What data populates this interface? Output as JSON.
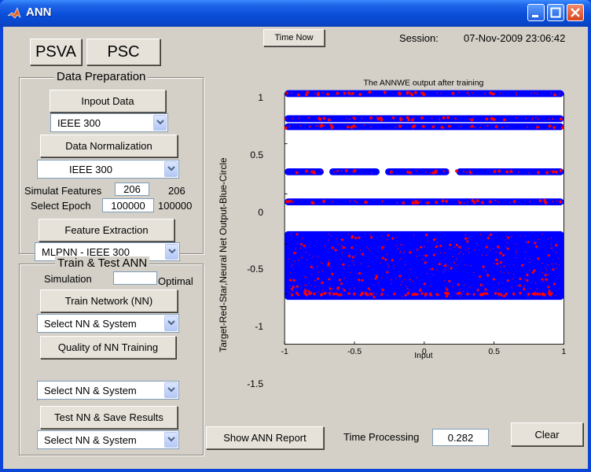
{
  "window": {
    "title": "ANN"
  },
  "top": {
    "psva_label": "PSVA",
    "psc_label": "PSC",
    "time_now_label": "Time Now",
    "session_label": "Session:",
    "session_value": "07-Nov-2009 23:06:42"
  },
  "data_prep": {
    "title": "Data Preparation",
    "input_button": "Inpout Data",
    "input_select": "IEEE 300",
    "normalization_button": "Data Normalization",
    "normalization_select": "IEEE 300",
    "simulat_features_label": "Simulat Features",
    "simulat_features_value": "206",
    "simulat_features_max": "206",
    "select_epoch_label": "Select Epoch",
    "select_epoch_value": "100000",
    "select_epoch_max": "100000",
    "feature_button": "Feature Extraction",
    "feature_select": "MLPNN - IEEE 300"
  },
  "train_test": {
    "title": "Train & Test ANN",
    "simulation_label": "Simulation",
    "simulation_value": "",
    "optimal_label": "Optimal",
    "train_button": "Train Network (NN)",
    "train_select": "Select NN & System",
    "quality_button": "Quality of NN Training",
    "quality_select": "Select NN & System",
    "test_button": "Test NN & Save Results",
    "test_select": "Select NN & System"
  },
  "bottom": {
    "show_report_label": "Show ANN Report",
    "time_processing_label": "Time Processing",
    "time_processing_value": "0.282",
    "clear_label": "Clear"
  },
  "chart_data": {
    "type": "scatter",
    "title": "The ANNWE output after training",
    "xlabel": "Input",
    "ylabel": "Target-Red-Star,Neural Net Output-Blue-Circle",
    "xlim": [
      -1,
      1
    ],
    "ylim": [
      -1.5,
      1
    ],
    "xticks": [
      "-1",
      "-0.5",
      "0",
      "0.5",
      "1"
    ],
    "yticks": [
      "1",
      "0.5",
      "0",
      "-0.5",
      "-1",
      "-1.5"
    ],
    "ytick_values": [
      1,
      0.5,
      0,
      -0.5,
      -1,
      -1.5
    ],
    "xtick_values": [
      -1,
      -0.5,
      0,
      0.5,
      1
    ],
    "bands": [
      {
        "y": 1.0,
        "x_ranges": [
          [
            -1,
            1
          ]
        ]
      },
      {
        "y": 0.75,
        "x_ranges": [
          [
            -1,
            1
          ]
        ]
      },
      {
        "y": 0.67,
        "x_ranges": [
          [
            -1,
            1
          ]
        ]
      },
      {
        "y": 0.22,
        "x_ranges": [
          [
            -1,
            -0.72
          ],
          [
            -0.68,
            -0.32
          ],
          [
            -0.28,
            0.18
          ],
          [
            0.23,
            1
          ]
        ]
      },
      {
        "y": -0.08,
        "x_ranges": [
          [
            -1,
            1
          ]
        ]
      }
    ],
    "dense_region": {
      "y_range": [
        -1.03,
        -0.4
      ],
      "x_range": [
        -1,
        1
      ]
    },
    "series": [
      {
        "name": "Target-Red-Star",
        "color": "#ff0000",
        "marker": "star"
      },
      {
        "name": "Neural Net Output-Blue-Circle",
        "color": "#0000ff",
        "marker": "circle"
      }
    ]
  }
}
